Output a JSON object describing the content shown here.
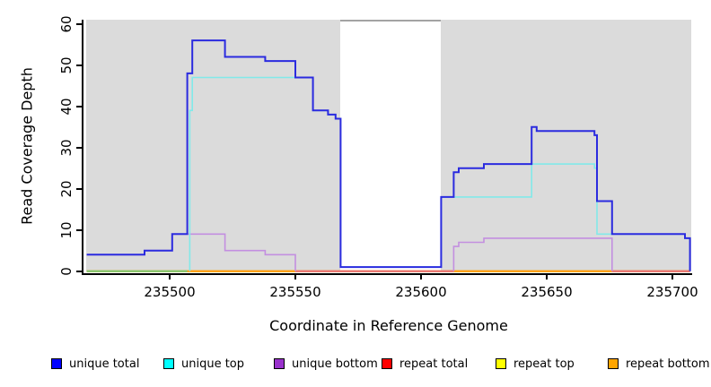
{
  "figure": {
    "background": "#FFFFFF",
    "plot_bg_color": "#DBDBDB",
    "no_data_band": {
      "x_start": 235568,
      "x_end": 235608,
      "fill": "#FFFFFF",
      "top_border_color": "#A3A3A3"
    }
  },
  "axes": {
    "x": {
      "label": "Coordinate in Reference Genome",
      "tick_values": [
        235500,
        235550,
        235600,
        235650,
        235700
      ],
      "min": 235467,
      "max": 235707
    },
    "y": {
      "label": "Read Coverage Depth",
      "tick_values": [
        0,
        10,
        20,
        30,
        40,
        50,
        60
      ],
      "min": 0,
      "max": 61
    }
  },
  "legend": {
    "items": [
      {
        "label": "unique total",
        "color": "#0000FF"
      },
      {
        "label": "unique top",
        "color": "#00FFFF"
      },
      {
        "label": "unique bottom",
        "color": "#9932CC"
      },
      {
        "label": "repeat total",
        "color": "#FF0000"
      },
      {
        "label": "repeat top",
        "color": "#FFFF00"
      },
      {
        "label": "repeat bottom",
        "color": "#FFA500"
      }
    ]
  },
  "chart_data": {
    "type": "line",
    "subtype": "step",
    "title": "",
    "xlabel": "Coordinate in Reference Genome",
    "ylabel": "Read Coverage Depth",
    "xlim": [
      235467,
      235707
    ],
    "ylim": [
      0,
      61
    ],
    "grid": false,
    "legend_position": "bottom",
    "no_data_band": [
      235568,
      235608
    ],
    "series": [
      {
        "name": "repeat total",
        "color": "#FF0000",
        "line_color": "#E02020",
        "width": 2,
        "skip_zero": false,
        "points": [
          [
            235467,
            0
          ]
        ],
        "end": 235707
      },
      {
        "name": "repeat top",
        "color": "#FFFF00",
        "line_color": "#FFFF00",
        "width": 2,
        "skip_zero": false,
        "points": [
          [
            235467,
            0
          ]
        ],
        "end": 235707
      },
      {
        "name": "repeat bottom",
        "color": "#FFA500",
        "line_color": "#FF9D14",
        "width": 2,
        "skip_zero": false,
        "points": [
          [
            235467,
            0
          ]
        ],
        "end": 235707
      },
      {
        "name": "unique bottom",
        "color": "#9932CC",
        "line_color": "#C38FE0",
        "width": 1.6,
        "skip_zero": true,
        "points": [
          [
            235467,
            4
          ],
          [
            235490,
            5
          ],
          [
            235501,
            9
          ],
          [
            235522,
            5
          ],
          [
            235538,
            4
          ],
          [
            235550,
            0
          ],
          [
            235613,
            6
          ],
          [
            235615,
            7
          ],
          [
            235625,
            8
          ],
          [
            235676,
            0
          ]
        ],
        "end": 235707
      },
      {
        "name": "unique top",
        "color": "#00FFFF",
        "line_color": "#82E9E9",
        "width": 1.6,
        "skip_zero": true,
        "points": [
          [
            235467,
            0
          ],
          [
            235508,
            39
          ],
          [
            235509,
            47
          ],
          [
            235557,
            39
          ],
          [
            235563,
            38
          ],
          [
            235566,
            37
          ],
          [
            235568,
            1
          ],
          [
            235608,
            18
          ],
          [
            235644,
            26
          ],
          [
            235669,
            25
          ],
          [
            235670,
            9
          ],
          [
            235705,
            8
          ],
          [
            235707,
            0
          ]
        ],
        "end": 235707
      },
      {
        "name": "unique total",
        "color": "#0000FF",
        "line_color": "#2B2BDF",
        "width": 2,
        "skip_zero": true,
        "points": [
          [
            235467,
            4
          ],
          [
            235490,
            5
          ],
          [
            235501,
            9
          ],
          [
            235507,
            48
          ],
          [
            235509,
            56
          ],
          [
            235522,
            52
          ],
          [
            235538,
            51
          ],
          [
            235550,
            47
          ],
          [
            235557,
            39
          ],
          [
            235563,
            38
          ],
          [
            235566,
            37
          ],
          [
            235568,
            1
          ],
          [
            235608,
            18
          ],
          [
            235613,
            24
          ],
          [
            235615,
            25
          ],
          [
            235625,
            26
          ],
          [
            235644,
            35
          ],
          [
            235646,
            34
          ],
          [
            235669,
            33
          ],
          [
            235670,
            17
          ],
          [
            235676,
            9
          ],
          [
            235705,
            8
          ],
          [
            235707,
            0
          ]
        ],
        "end": 235707
      }
    ],
    "zero_line_overlap_segments": [
      {
        "from": 235467,
        "to": 235507,
        "color": "#79C979"
      },
      {
        "from": 235550,
        "to": 235613,
        "color": "#E8707E"
      },
      {
        "from": 235676,
        "to": 235707,
        "color": "#E8707E"
      }
    ]
  }
}
